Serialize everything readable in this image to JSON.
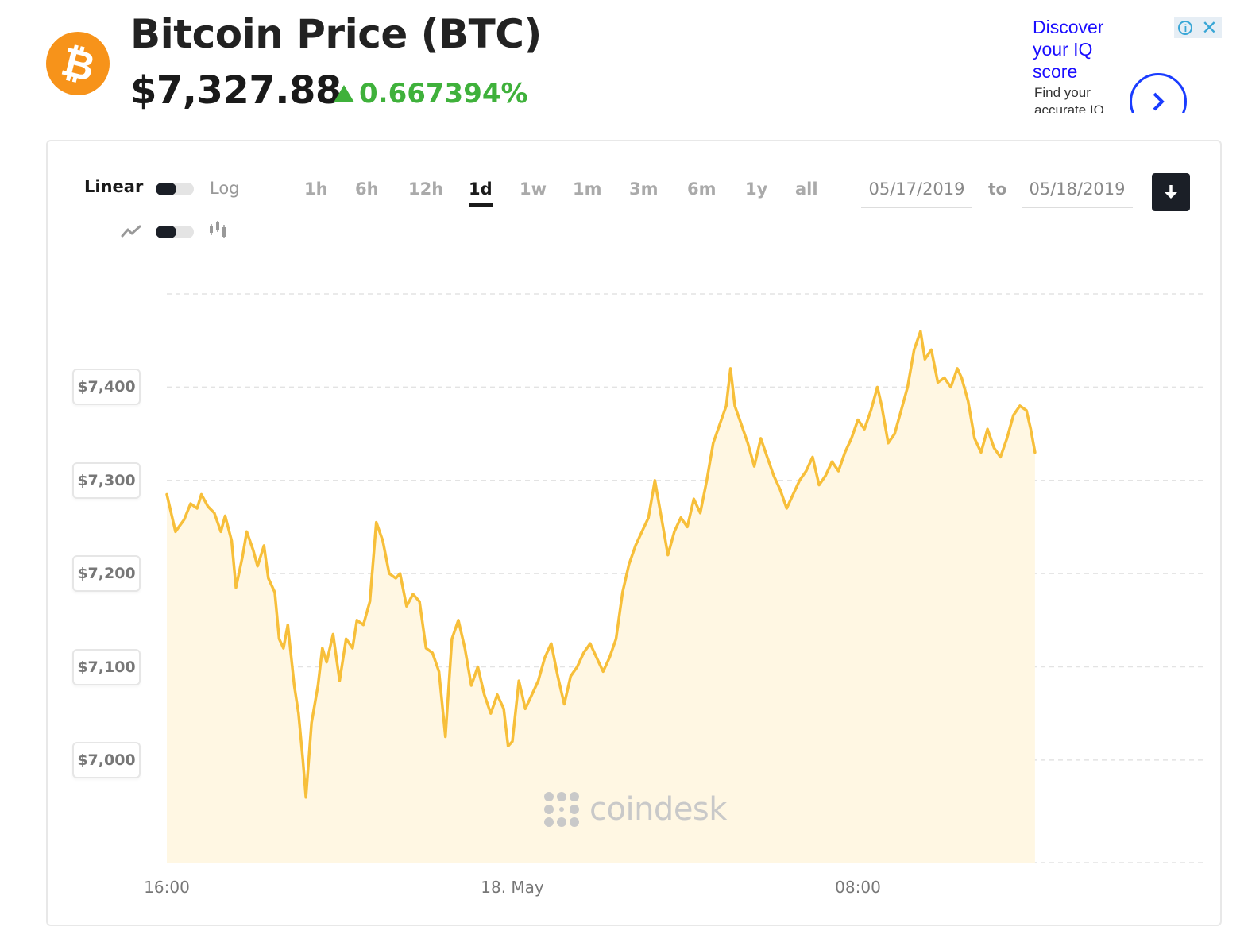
{
  "header": {
    "logo_glyph": "₿",
    "title": "Bitcoin Price (BTC)",
    "price": "$7,327.88",
    "change": "0.667394%",
    "change_color": "#3fb13b",
    "brand_color": "#f7931a"
  },
  "ad": {
    "headline": "Discover your IQ score",
    "subtext": "Find your accurate IQ"
  },
  "controls": {
    "scale_linear": "Linear",
    "scale_log": "Log",
    "ranges": [
      "1h",
      "6h",
      "12h",
      "1d",
      "1w",
      "1m",
      "3m",
      "6m",
      "1y",
      "all"
    ],
    "active_range": "1d",
    "date_from": "05/17/2019",
    "date_to_label": "to",
    "date_to": "05/18/2019"
  },
  "watermark": "coindesk",
  "chart_data": {
    "type": "area",
    "line_color": "#f7bf3a",
    "fill_color": "#fff7e3",
    "grid": true,
    "ylim": [
      6890,
      7500
    ],
    "yticks": [
      7000,
      7100,
      7200,
      7300,
      7400
    ],
    "ytick_labels": [
      "$7,000",
      "$7,100",
      "$7,200",
      "$7,300",
      "$7,400"
    ],
    "xlim": [
      0,
      24
    ],
    "xticks": [
      0,
      8,
      16
    ],
    "xtick_labels": [
      "16:00",
      "18. May",
      "08:00"
    ],
    "series": [
      {
        "values": [
          [
            0.0,
            7285
          ],
          [
            0.2,
            7245
          ],
          [
            0.4,
            7258
          ],
          [
            0.55,
            7275
          ],
          [
            0.7,
            7270
          ],
          [
            0.8,
            7285
          ],
          [
            0.95,
            7272
          ],
          [
            1.1,
            7265
          ],
          [
            1.25,
            7245
          ],
          [
            1.35,
            7262
          ],
          [
            1.5,
            7235
          ],
          [
            1.6,
            7185
          ],
          [
            1.75,
            7218
          ],
          [
            1.85,
            7245
          ],
          [
            2.0,
            7225
          ],
          [
            2.1,
            7208
          ],
          [
            2.25,
            7230
          ],
          [
            2.35,
            7195
          ],
          [
            2.5,
            7180
          ],
          [
            2.6,
            7130
          ],
          [
            2.7,
            7120
          ],
          [
            2.8,
            7145
          ],
          [
            2.95,
            7080
          ],
          [
            3.05,
            7050
          ],
          [
            3.15,
            7000
          ],
          [
            3.22,
            6960
          ],
          [
            3.35,
            7040
          ],
          [
            3.5,
            7080
          ],
          [
            3.6,
            7120
          ],
          [
            3.7,
            7105
          ],
          [
            3.85,
            7135
          ],
          [
            4.0,
            7085
          ],
          [
            4.15,
            7130
          ],
          [
            4.3,
            7120
          ],
          [
            4.4,
            7150
          ],
          [
            4.55,
            7145
          ],
          [
            4.7,
            7170
          ],
          [
            4.85,
            7255
          ],
          [
            5.0,
            7235
          ],
          [
            5.15,
            7200
          ],
          [
            5.3,
            7195
          ],
          [
            5.4,
            7200
          ],
          [
            5.55,
            7165
          ],
          [
            5.7,
            7178
          ],
          [
            5.85,
            7170
          ],
          [
            6.0,
            7120
          ],
          [
            6.15,
            7115
          ],
          [
            6.3,
            7095
          ],
          [
            6.45,
            7025
          ],
          [
            6.6,
            7130
          ],
          [
            6.75,
            7150
          ],
          [
            6.9,
            7120
          ],
          [
            7.05,
            7080
          ],
          [
            7.2,
            7100
          ],
          [
            7.35,
            7070
          ],
          [
            7.5,
            7050
          ],
          [
            7.65,
            7070
          ],
          [
            7.8,
            7055
          ],
          [
            7.9,
            7015
          ],
          [
            8.0,
            7020
          ],
          [
            8.15,
            7085
          ],
          [
            8.3,
            7055
          ],
          [
            8.45,
            7070
          ],
          [
            8.6,
            7085
          ],
          [
            8.75,
            7110
          ],
          [
            8.9,
            7125
          ],
          [
            9.05,
            7090
          ],
          [
            9.2,
            7060
          ],
          [
            9.35,
            7090
          ],
          [
            9.5,
            7100
          ],
          [
            9.65,
            7115
          ],
          [
            9.8,
            7125
          ],
          [
            9.95,
            7110
          ],
          [
            10.1,
            7095
          ],
          [
            10.25,
            7110
          ],
          [
            10.4,
            7130
          ],
          [
            10.55,
            7180
          ],
          [
            10.7,
            7210
          ],
          [
            10.85,
            7230
          ],
          [
            11.0,
            7245
          ],
          [
            11.15,
            7260
          ],
          [
            11.3,
            7300
          ],
          [
            11.45,
            7260
          ],
          [
            11.6,
            7220
          ],
          [
            11.75,
            7245
          ],
          [
            11.9,
            7260
          ],
          [
            12.05,
            7250
          ],
          [
            12.2,
            7280
          ],
          [
            12.35,
            7265
          ],
          [
            12.5,
            7300
          ],
          [
            12.65,
            7340
          ],
          [
            12.8,
            7360
          ],
          [
            12.95,
            7380
          ],
          [
            13.05,
            7420
          ],
          [
            13.15,
            7380
          ],
          [
            13.3,
            7360
          ],
          [
            13.45,
            7340
          ],
          [
            13.6,
            7315
          ],
          [
            13.75,
            7345
          ],
          [
            13.9,
            7325
          ],
          [
            14.05,
            7305
          ],
          [
            14.2,
            7290
          ],
          [
            14.35,
            7270
          ],
          [
            14.5,
            7285
          ],
          [
            14.65,
            7300
          ],
          [
            14.8,
            7310
          ],
          [
            14.95,
            7325
          ],
          [
            15.1,
            7295
          ],
          [
            15.25,
            7305
          ],
          [
            15.4,
            7320
          ],
          [
            15.55,
            7310
          ],
          [
            15.7,
            7330
          ],
          [
            15.85,
            7345
          ],
          [
            16.0,
            7365
          ],
          [
            16.15,
            7355
          ],
          [
            16.3,
            7375
          ],
          [
            16.45,
            7400
          ],
          [
            16.55,
            7380
          ],
          [
            16.7,
            7340
          ],
          [
            16.85,
            7350
          ],
          [
            17.0,
            7375
          ],
          [
            17.15,
            7400
          ],
          [
            17.3,
            7440
          ],
          [
            17.45,
            7460
          ],
          [
            17.55,
            7430
          ],
          [
            17.7,
            7440
          ],
          [
            17.85,
            7405
          ],
          [
            18.0,
            7410
          ],
          [
            18.15,
            7400
          ],
          [
            18.3,
            7420
          ],
          [
            18.4,
            7410
          ],
          [
            18.55,
            7385
          ],
          [
            18.7,
            7345
          ],
          [
            18.85,
            7330
          ],
          [
            19.0,
            7355
          ],
          [
            19.15,
            7335
          ],
          [
            19.3,
            7325
          ],
          [
            19.45,
            7345
          ],
          [
            19.6,
            7370
          ],
          [
            19.75,
            7380
          ],
          [
            19.9,
            7375
          ],
          [
            20.0,
            7355
          ],
          [
            20.1,
            7330
          ]
        ]
      }
    ]
  }
}
